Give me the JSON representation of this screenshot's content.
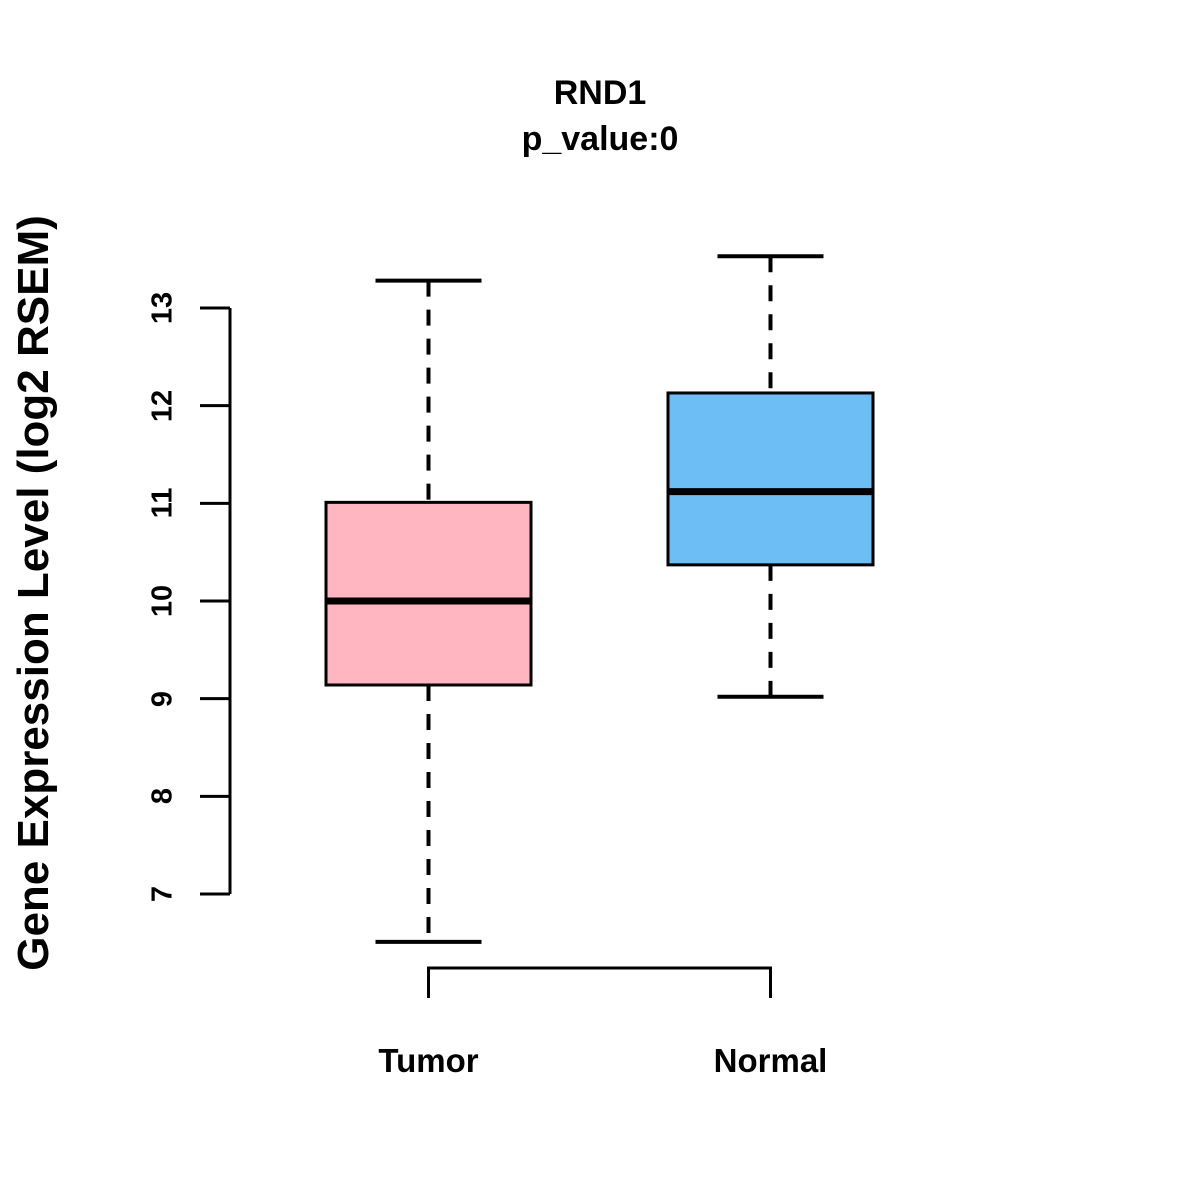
{
  "chart_data": {
    "type": "box",
    "title": "RND1",
    "subtitle": "p_value:0",
    "ylabel": "Gene Expression Level (log2 RSEM)",
    "xlabel": "",
    "ylim": [
      7,
      13
    ],
    "yticks": [
      "7",
      "8",
      "9",
      "10",
      "11",
      "12",
      "13"
    ],
    "grid": false,
    "legend": "none",
    "groups": [
      {
        "label": "Tumor",
        "color": "#FFB6C1",
        "whisker_low": 6.51,
        "q1": 9.14,
        "median": 10.0,
        "q3": 11.01,
        "whisker_high": 13.28
      },
      {
        "label": "Normal",
        "color": "#6DBEF5",
        "whisker_low": 9.02,
        "q1": 10.37,
        "median": 11.12,
        "q3": 12.13,
        "whisker_high": 13.53
      }
    ],
    "stroke_color": "#000000"
  }
}
